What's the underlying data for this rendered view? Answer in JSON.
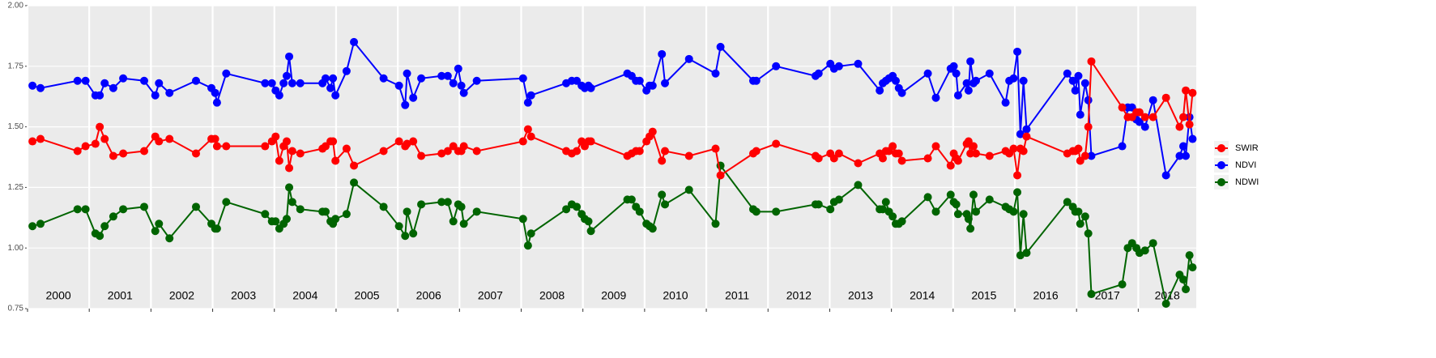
{
  "chart_data": {
    "type": "line",
    "x": [
      2000.08,
      2000.21,
      2000.81,
      2000.94,
      2001.1,
      2001.17,
      2001.25,
      2001.39,
      2001.55,
      2001.89,
      2002.07,
      2002.13,
      2002.3,
      2002.73,
      2002.98,
      2003.04,
      2003.07,
      2003.22,
      2003.85,
      2003.96,
      2004.02,
      2004.08,
      2004.15,
      2004.2,
      2004.24,
      2004.29,
      2004.42,
      2004.78,
      2004.83,
      2004.91,
      2004.95,
      2004.99,
      2005.17,
      2005.29,
      2005.77,
      2006.02,
      2006.12,
      2006.15,
      2006.25,
      2006.38,
      2006.71,
      2006.81,
      2006.9,
      2006.98,
      2007.03,
      2007.07,
      2007.28,
      2008.03,
      2008.11,
      2008.16,
      2008.73,
      2008.82,
      2008.9,
      2008.98,
      2009.03,
      2009.09,
      2009.13,
      2009.72,
      2009.79,
      2009.86,
      2009.92,
      2010.03,
      2010.08,
      2010.13,
      2010.28,
      2010.33,
      2010.72,
      2011.15,
      2011.23,
      2011.76,
      2011.81,
      2012.13,
      2012.77,
      2012.82,
      2013.01,
      2013.07,
      2013.15,
      2013.46,
      2013.81,
      2013.86,
      2013.91,
      2013.96,
      2014.02,
      2014.07,
      2014.12,
      2014.17,
      2014.59,
      2014.72,
      2014.96,
      2015.01,
      2015.05,
      2015.08,
      2015.22,
      2015.25,
      2015.28,
      2015.33,
      2015.37,
      2015.59,
      2015.85,
      2015.91,
      2015.98,
      2016.04,
      2016.09,
      2016.14,
      2016.19,
      2016.85,
      2016.94,
      2016.98,
      2017.03,
      2017.06,
      2017.14,
      2017.19,
      2017.24,
      2017.74,
      2017.83,
      2017.9,
      2017.97,
      2018.02,
      2018.11,
      2018.24,
      2018.45,
      2018.67,
      2018.73,
      2018.77,
      2018.83,
      2018.88
    ],
    "series": [
      {
        "name": "SWIR",
        "color": "#ff0000",
        "values": [
          1.44,
          1.45,
          1.4,
          1.42,
          1.43,
          1.5,
          1.45,
          1.38,
          1.39,
          1.4,
          1.46,
          1.44,
          1.45,
          1.39,
          1.45,
          1.45,
          1.42,
          1.42,
          1.42,
          1.44,
          1.46,
          1.36,
          1.42,
          1.44,
          1.33,
          1.4,
          1.39,
          1.41,
          1.42,
          1.44,
          1.44,
          1.36,
          1.41,
          1.34,
          1.4,
          1.44,
          1.42,
          1.43,
          1.44,
          1.38,
          1.39,
          1.4,
          1.42,
          1.4,
          1.4,
          1.42,
          1.4,
          1.44,
          1.49,
          1.46,
          1.4,
          1.39,
          1.4,
          1.44,
          1.42,
          1.44,
          1.44,
          1.38,
          1.39,
          1.4,
          1.4,
          1.44,
          1.46,
          1.48,
          1.36,
          1.4,
          1.38,
          1.41,
          1.3,
          1.39,
          1.4,
          1.43,
          1.38,
          1.37,
          1.39,
          1.37,
          1.39,
          1.35,
          1.39,
          1.37,
          1.4,
          1.4,
          1.42,
          1.39,
          1.39,
          1.36,
          1.37,
          1.42,
          1.34,
          1.39,
          1.37,
          1.36,
          1.43,
          1.44,
          1.39,
          1.42,
          1.39,
          1.38,
          1.4,
          1.39,
          1.41,
          1.3,
          1.41,
          1.4,
          1.46,
          1.39,
          1.4,
          1.4,
          1.41,
          1.36,
          1.38,
          1.5,
          1.77,
          1.58,
          1.54,
          1.54,
          1.56,
          1.56,
          1.54,
          1.54,
          1.62,
          1.5,
          1.54,
          1.65,
          1.51,
          1.64
        ]
      },
      {
        "name": "NDVI",
        "color": "#0000ff",
        "values": [
          1.67,
          1.66,
          1.69,
          1.69,
          1.63,
          1.63,
          1.68,
          1.66,
          1.7,
          1.69,
          1.63,
          1.68,
          1.64,
          1.69,
          1.66,
          1.64,
          1.6,
          1.72,
          1.68,
          1.68,
          1.65,
          1.63,
          1.68,
          1.71,
          1.79,
          1.68,
          1.68,
          1.68,
          1.7,
          1.66,
          1.7,
          1.63,
          1.73,
          1.85,
          1.7,
          1.67,
          1.59,
          1.72,
          1.62,
          1.7,
          1.71,
          1.71,
          1.68,
          1.74,
          1.67,
          1.64,
          1.69,
          1.7,
          1.6,
          1.63,
          1.68,
          1.69,
          1.69,
          1.67,
          1.66,
          1.67,
          1.66,
          1.72,
          1.71,
          1.69,
          1.69,
          1.65,
          1.67,
          1.67,
          1.8,
          1.68,
          1.78,
          1.72,
          1.83,
          1.69,
          1.69,
          1.75,
          1.71,
          1.72,
          1.76,
          1.74,
          1.75,
          1.76,
          1.65,
          1.68,
          1.69,
          1.7,
          1.71,
          1.69,
          1.66,
          1.64,
          1.72,
          1.62,
          1.74,
          1.75,
          1.72,
          1.63,
          1.68,
          1.65,
          1.77,
          1.68,
          1.69,
          1.72,
          1.6,
          1.69,
          1.7,
          1.81,
          1.47,
          1.69,
          1.49,
          1.72,
          1.69,
          1.65,
          1.71,
          1.55,
          1.68,
          1.61,
          1.38,
          1.42,
          1.58,
          1.58,
          1.53,
          1.52,
          1.5,
          1.61,
          1.3,
          1.38,
          1.42,
          1.38,
          1.54,
          1.45
        ]
      },
      {
        "name": "NDWI",
        "color": "#006400",
        "values": [
          1.09,
          1.1,
          1.16,
          1.16,
          1.06,
          1.05,
          1.09,
          1.13,
          1.16,
          1.17,
          1.07,
          1.1,
          1.04,
          1.17,
          1.1,
          1.08,
          1.08,
          1.19,
          1.14,
          1.11,
          1.11,
          1.08,
          1.1,
          1.12,
          1.25,
          1.19,
          1.16,
          1.15,
          1.15,
          1.11,
          1.1,
          1.12,
          1.14,
          1.27,
          1.17,
          1.09,
          1.05,
          1.15,
          1.06,
          1.18,
          1.19,
          1.19,
          1.11,
          1.18,
          1.17,
          1.1,
          1.15,
          1.12,
          1.01,
          1.06,
          1.16,
          1.18,
          1.17,
          1.14,
          1.12,
          1.11,
          1.07,
          1.2,
          1.2,
          1.17,
          1.15,
          1.1,
          1.09,
          1.08,
          1.22,
          1.18,
          1.24,
          1.1,
          1.34,
          1.16,
          1.15,
          1.15,
          1.18,
          1.18,
          1.16,
          1.19,
          1.2,
          1.26,
          1.16,
          1.16,
          1.19,
          1.15,
          1.13,
          1.1,
          1.1,
          1.11,
          1.21,
          1.15,
          1.22,
          1.19,
          1.18,
          1.14,
          1.14,
          1.12,
          1.08,
          1.22,
          1.15,
          1.2,
          1.17,
          1.16,
          1.15,
          1.23,
          0.97,
          1.14,
          0.98,
          1.19,
          1.17,
          1.15,
          1.15,
          1.1,
          1.13,
          1.06,
          0.81,
          0.85,
          1.0,
          1.02,
          1.0,
          0.98,
          0.99,
          1.02,
          0.77,
          0.89,
          0.87,
          0.83,
          0.97,
          0.92
        ]
      }
    ],
    "xlim": [
      2000,
      2018.94
    ],
    "xticks": [
      2000,
      2001,
      2002,
      2003,
      2004,
      2005,
      2006,
      2007,
      2008,
      2009,
      2010,
      2011,
      2012,
      2013,
      2014,
      2015,
      2016,
      2017,
      2018
    ],
    "year_labels": [
      "2000",
      "2001",
      "2002",
      "2003",
      "2004",
      "2005",
      "2006",
      "2007",
      "2008",
      "2009",
      "2010",
      "2011",
      "2012",
      "2013",
      "2014",
      "2015",
      "2016",
      "2017",
      "2018"
    ],
    "ylim": [
      0.75,
      2.0
    ],
    "yticks": [
      0.75,
      {
        "value": 1,
        "label": "1.00"
      },
      1.25,
      {
        "value": 1.5,
        "label": "1.50"
      },
      1.75,
      {
        "value": 2,
        "label": "2.00"
      }
    ],
    "grid": true,
    "legend": "right"
  }
}
